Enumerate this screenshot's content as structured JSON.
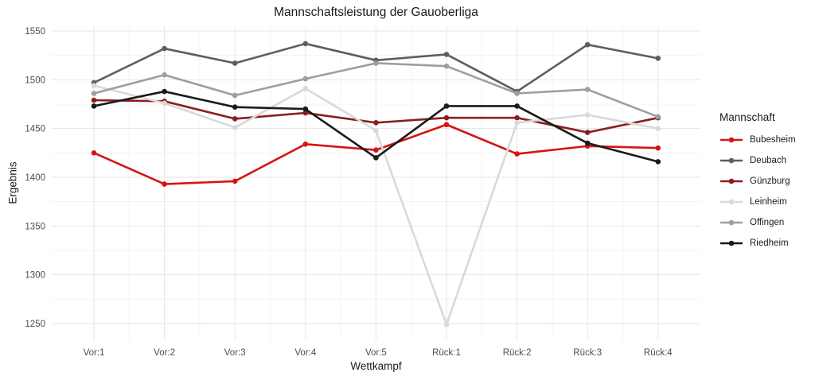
{
  "chart_data": {
    "type": "line",
    "title": "Mannschaftsleistung der Gauoberliga",
    "xlabel": "Wettkampf",
    "ylabel": "Ergebnis",
    "legend_title": "Mannschaft",
    "legend_position": "right",
    "grid": "major+minor",
    "background_color": "#ffffff",
    "grid_major_color": "#e6e6e6",
    "grid_minor_color": "#f3f3f3",
    "tick_label_color": "#4d4d4d",
    "text_color": "#1a1a1a",
    "categories": [
      "Vor:1",
      "Vor:2",
      "Vor:3",
      "Vor:4",
      "Vor:5",
      "Rück:1",
      "Rück:2",
      "Rück:3",
      "Rück:4"
    ],
    "ylim": [
      1250,
      1550
    ],
    "y_ticks": [
      1250,
      1300,
      1350,
      1400,
      1450,
      1500,
      1550
    ],
    "series": [
      {
        "name": "Bubesheim",
        "color": "#d61414",
        "values": [
          1425,
          1393,
          1396,
          1434,
          1428,
          1454,
          1424,
          1432,
          1430
        ]
      },
      {
        "name": "Deubach",
        "color": "#5e5e5e",
        "values": [
          1497,
          1532,
          1517,
          1537,
          1520,
          1526,
          1488,
          1536,
          1522
        ]
      },
      {
        "name": "Günzburg",
        "color": "#8b1f1f",
        "values": [
          1479,
          1478,
          1460,
          1466,
          1456,
          1461,
          1461,
          1446,
          1461
        ]
      },
      {
        "name": "Leinheim",
        "color": "#d9d9d9",
        "values": [
          1494,
          1476,
          1451,
          1491,
          1448,
          1249,
          1456,
          1464,
          1450
        ]
      },
      {
        "name": "Offingen",
        "color": "#9e9e9e",
        "values": [
          1486,
          1505,
          1484,
          1501,
          1517,
          1514,
          1486,
          1490,
          1462
        ]
      },
      {
        "name": "Riedheim",
        "color": "#1a1a1a",
        "values": [
          1473,
          1488,
          1472,
          1470,
          1420,
          1473,
          1473,
          1435,
          1416
        ]
      }
    ]
  }
}
